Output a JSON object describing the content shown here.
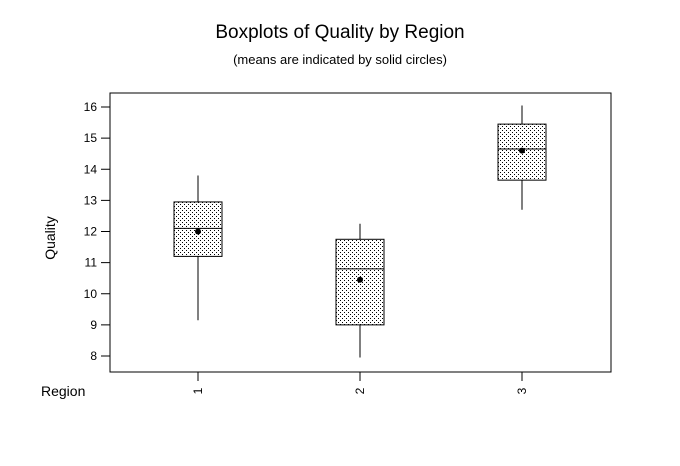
{
  "chart_data": {
    "type": "boxplot",
    "title": "Boxplots of Quality by Region",
    "subtitle": "(means are indicated by solid circles)",
    "xlabel": "Region",
    "ylabel": "Quality",
    "ylim": [
      7.5,
      16.4
    ],
    "yticks": [
      8,
      9,
      10,
      11,
      12,
      13,
      14,
      15,
      16
    ],
    "categories": [
      "1",
      "2",
      "3"
    ],
    "boxes": [
      {
        "category": "1",
        "whisker_low": 9.15,
        "q1": 11.2,
        "median": 12.1,
        "q3": 12.95,
        "whisker_high": 13.8,
        "mean": 12.0
      },
      {
        "category": "2",
        "whisker_low": 7.95,
        "q1": 9.0,
        "median": 10.8,
        "q3": 11.75,
        "whisker_high": 12.25,
        "mean": 10.45
      },
      {
        "category": "3",
        "whisker_low": 12.7,
        "q1": 13.65,
        "median": 14.65,
        "q3": 15.45,
        "whisker_high": 16.05,
        "mean": 14.6
      }
    ],
    "grid": false,
    "colors": {
      "box_fill_pattern": "stipple",
      "line": "#000000",
      "background": "#ffffff"
    }
  }
}
